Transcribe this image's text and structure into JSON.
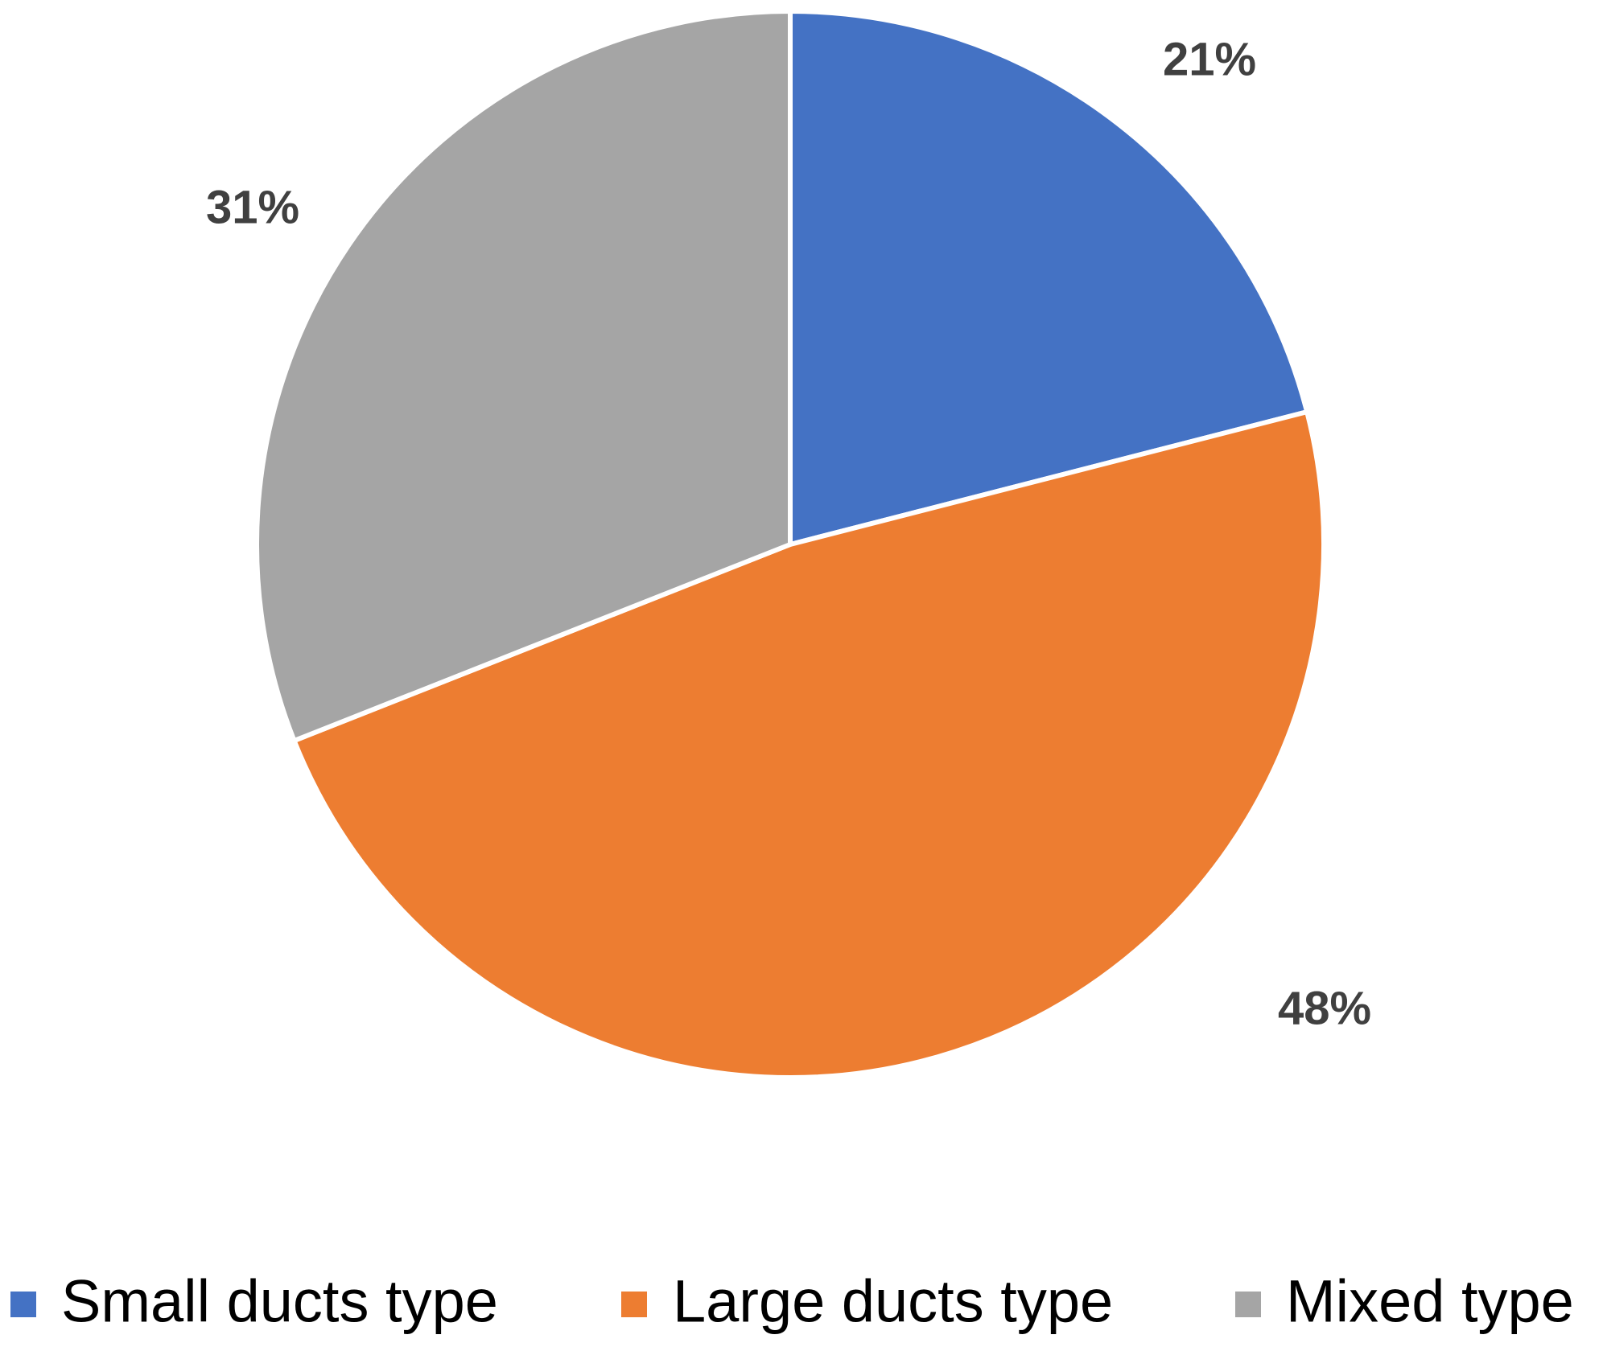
{
  "chart_data": {
    "type": "pie",
    "categories": [
      "Small ducts type",
      "Large ducts type",
      "Mixed type"
    ],
    "values": [
      21,
      48,
      31
    ],
    "value_labels": [
      "21%",
      "48%",
      "31%"
    ],
    "colors": [
      "#4472c4",
      "#ed7d31",
      "#a5a5a5"
    ],
    "legend": "bottom"
  }
}
